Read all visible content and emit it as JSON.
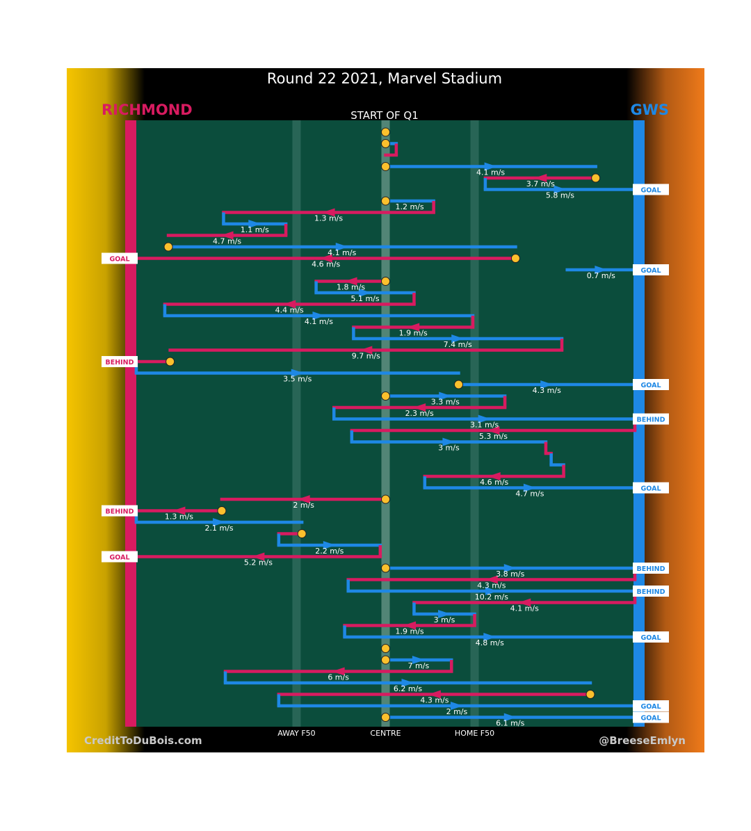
{
  "header": {
    "title": "Round 22 2021, Marvel Stadium",
    "subtitle": "START OF Q1",
    "team_left": "RICHMOND",
    "team_right": "GWS",
    "credit_left": "CreditToDuBois.com",
    "credit_right": "@BreeseEmlyn"
  },
  "colors": {
    "richmond": "#d81b60",
    "gws": "#1e88e5",
    "field": "#0b4d3c",
    "stoppage": "#fbc02d",
    "left_edge": "#f5c400",
    "right_edge": "#ef7a1a"
  },
  "chart_data": {
    "type": "line",
    "title": "Round 22 2021, Marvel Stadium",
    "x_axis_labels": [
      "AWAY F50",
      "CENTRE",
      "HOME F50"
    ],
    "x_axis_positions": [
      -50,
      0,
      50
    ],
    "xlim": [
      -140,
      140
    ],
    "chains": [
      {
        "y": 0,
        "team": "gws",
        "x0": 0,
        "x1": 0,
        "dir": "none",
        "stop": "start",
        "speed": ""
      },
      {
        "y": 1,
        "team": "gws",
        "x0": 0,
        "x1": 6,
        "dir": "none",
        "stop": "start",
        "speed": ""
      },
      {
        "y": 2,
        "team": "richmond",
        "x0": 6,
        "x1": 0,
        "dir": "none",
        "stop": "",
        "speed": ""
      },
      {
        "y": 3,
        "team": "gws",
        "x0": 0,
        "x1": 118,
        "dir": "right",
        "stop": "start",
        "speed": "4.1 m/s"
      },
      {
        "y": 4,
        "team": "richmond",
        "x0": 118,
        "x1": 56,
        "dir": "left",
        "stop": "start",
        "speed": "3.7 m/s"
      },
      {
        "y": 5,
        "team": "gws",
        "x0": 56,
        "x1": 140,
        "dir": "right",
        "stop": "",
        "speed": "5.8 m/s",
        "outcome": "GOAL"
      },
      {
        "y": 6,
        "team": "gws",
        "x0": 0,
        "x1": 27,
        "dir": "none",
        "stop": "start",
        "speed": "1.2 m/s"
      },
      {
        "y": 7,
        "team": "richmond",
        "x0": 27,
        "x1": -91,
        "dir": "left",
        "stop": "",
        "speed": "1.3 m/s"
      },
      {
        "y": 8,
        "team": "gws",
        "x0": -91,
        "x1": -56,
        "dir": "right",
        "stop": "",
        "speed": "1.1 m/s"
      },
      {
        "y": 9,
        "team": "richmond",
        "x0": -56,
        "x1": -122,
        "dir": "left",
        "stop": "",
        "speed": "4.7 m/s"
      },
      {
        "y": 10,
        "team": "gws",
        "x0": -122,
        "x1": 73,
        "dir": "right",
        "stop": "start",
        "speed": "4.1 m/s"
      },
      {
        "y": 11,
        "team": "richmond",
        "x0": 73,
        "x1": -140,
        "dir": "left",
        "stop": "start",
        "speed": "4.6 m/s",
        "outcome": "GOAL"
      },
      {
        "y": 12,
        "team": "gws",
        "x0": 102,
        "x1": 140,
        "dir": "right",
        "stop": "",
        "speed": "0.7 m/s",
        "outcome": "GOAL"
      },
      {
        "y": 13,
        "team": "richmond",
        "x0": 0,
        "x1": -39,
        "dir": "left",
        "stop": "start",
        "speed": "1.8 m/s"
      },
      {
        "y": 14,
        "team": "gws",
        "x0": -39,
        "x1": 16,
        "dir": "right",
        "stop": "",
        "speed": "5.1 m/s"
      },
      {
        "y": 15,
        "team": "richmond",
        "x0": 16,
        "x1": -124,
        "dir": "left",
        "stop": "",
        "speed": "4.4 m/s"
      },
      {
        "y": 16,
        "team": "gws",
        "x0": -124,
        "x1": 49,
        "dir": "right",
        "stop": "",
        "speed": "4.1 m/s"
      },
      {
        "y": 17,
        "team": "richmond",
        "x0": 49,
        "x1": -18,
        "dir": "left",
        "stop": "",
        "speed": "1.9 m/s"
      },
      {
        "y": 18,
        "team": "gws",
        "x0": -18,
        "x1": 99,
        "dir": "right",
        "stop": "",
        "speed": "7.4 m/s"
      },
      {
        "y": 19,
        "team": "richmond",
        "x0": 99,
        "x1": -121,
        "dir": "left",
        "stop": "",
        "speed": "9.7 m/s"
      },
      {
        "y": 20,
        "team": "richmond",
        "x0": -121,
        "x1": -140,
        "dir": "none",
        "stop": "start",
        "speed": "",
        "outcome": "BEHIND"
      },
      {
        "y": 21,
        "team": "gws",
        "x0": -140,
        "x1": 41,
        "dir": "right",
        "stop": "",
        "speed": "3.5 m/s"
      },
      {
        "y": 22,
        "team": "gws",
        "x0": 41,
        "x1": 140,
        "dir": "right",
        "stop": "start",
        "speed": "4.3 m/s",
        "outcome": "GOAL"
      },
      {
        "y": 23,
        "team": "gws",
        "x0": 0,
        "x1": 67,
        "dir": "right",
        "stop": "start",
        "speed": "3.3 m/s"
      },
      {
        "y": 24,
        "team": "richmond",
        "x0": 67,
        "x1": -29,
        "dir": "left",
        "stop": "",
        "speed": "2.3 m/s"
      },
      {
        "y": 25,
        "team": "gws",
        "x0": -29,
        "x1": 140,
        "dir": "right",
        "stop": "",
        "speed": "3.1 m/s",
        "outcome": "BEHIND"
      },
      {
        "y": 26,
        "team": "richmond",
        "x0": 140,
        "x1": -19,
        "dir": "left",
        "stop": "",
        "speed": "5.3 m/s"
      },
      {
        "y": 27,
        "team": "gws",
        "x0": -19,
        "x1": 90,
        "dir": "right",
        "stop": "",
        "speed": "3 m/s"
      },
      {
        "y": 28,
        "team": "richmond",
        "x0": 90,
        "x1": 93,
        "dir": "none",
        "stop": "",
        "speed": ""
      },
      {
        "y": 29,
        "team": "gws",
        "x0": 93,
        "x1": 100,
        "dir": "none",
        "stop": "",
        "speed": ""
      },
      {
        "y": 30,
        "team": "richmond",
        "x0": 100,
        "x1": 22,
        "dir": "left",
        "stop": "",
        "speed": "4.6 m/s"
      },
      {
        "y": 31,
        "team": "gws",
        "x0": 22,
        "x1": 140,
        "dir": "right",
        "stop": "",
        "speed": "4.7 m/s",
        "outcome": "GOAL"
      },
      {
        "y": 32,
        "team": "richmond",
        "x0": 0,
        "x1": -92,
        "dir": "left",
        "stop": "start",
        "speed": "2 m/s"
      },
      {
        "y": 33,
        "team": "richmond",
        "x0": -92,
        "x1": -140,
        "dir": "left",
        "stop": "start",
        "speed": "1.3 m/s",
        "outcome": "BEHIND"
      },
      {
        "y": 34,
        "team": "gws",
        "x0": -140,
        "x1": -47,
        "dir": "right",
        "stop": "",
        "speed": "2.1 m/s"
      },
      {
        "y": 35,
        "team": "richmond",
        "x0": -47,
        "x1": -60,
        "dir": "none",
        "stop": "start",
        "speed": ""
      },
      {
        "y": 36,
        "team": "gws",
        "x0": -60,
        "x1": -3,
        "dir": "right",
        "stop": "",
        "speed": "2.2 m/s"
      },
      {
        "y": 37,
        "team": "richmond",
        "x0": -3,
        "x1": -140,
        "dir": "left",
        "stop": "",
        "speed": "5.2 m/s",
        "outcome": "GOAL"
      },
      {
        "y": 38,
        "team": "gws",
        "x0": 0,
        "x1": 140,
        "dir": "right",
        "stop": "start",
        "speed": "3.8 m/s",
        "outcome": "BEHIND"
      },
      {
        "y": 39,
        "team": "richmond",
        "x0": 140,
        "x1": -21,
        "dir": "left",
        "stop": "",
        "speed": "4.3 m/s"
      },
      {
        "y": 40,
        "team": "gws",
        "x0": -21,
        "x1": 140,
        "dir": "right",
        "stop": "",
        "speed": "10.2 m/s",
        "outcome": "BEHIND"
      },
      {
        "y": 41,
        "team": "richmond",
        "x0": 140,
        "x1": 16,
        "dir": "left",
        "stop": "",
        "speed": "4.1 m/s"
      },
      {
        "y": 42,
        "team": "gws",
        "x0": 16,
        "x1": 50,
        "dir": "right",
        "stop": "",
        "speed": "3 m/s"
      },
      {
        "y": 43,
        "team": "richmond",
        "x0": 50,
        "x1": -23,
        "dir": "left",
        "stop": "",
        "speed": "1.9 m/s"
      },
      {
        "y": 44,
        "team": "gws",
        "x0": -23,
        "x1": 140,
        "dir": "right",
        "stop": "",
        "speed": "4.8 m/s",
        "outcome": "GOAL"
      },
      {
        "y": 45,
        "team": "richmond",
        "x0": 0,
        "x1": 0,
        "dir": "none",
        "stop": "start",
        "speed": ""
      },
      {
        "y": 46,
        "team": "gws",
        "x0": 0,
        "x1": 37,
        "dir": "right",
        "stop": "start",
        "speed": "7 m/s"
      },
      {
        "y": 47,
        "team": "richmond",
        "x0": 37,
        "x1": -90,
        "dir": "left",
        "stop": "",
        "speed": "6 m/s"
      },
      {
        "y": 48,
        "team": "gws",
        "x0": -90,
        "x1": 115,
        "dir": "right",
        "stop": "",
        "speed": "6.2 m/s"
      },
      {
        "y": 49,
        "team": "richmond",
        "x0": 115,
        "x1": -60,
        "dir": "left",
        "stop": "start",
        "speed": "4.3 m/s"
      },
      {
        "y": 50,
        "team": "gws",
        "x0": -60,
        "x1": 140,
        "dir": "right",
        "stop": "",
        "speed": "2 m/s",
        "outcome": "GOAL"
      },
      {
        "y": 51,
        "team": "gws",
        "x0": 0,
        "x1": 140,
        "dir": "right",
        "stop": "start",
        "speed": "6.1 m/s",
        "outcome": "GOAL"
      }
    ]
  }
}
